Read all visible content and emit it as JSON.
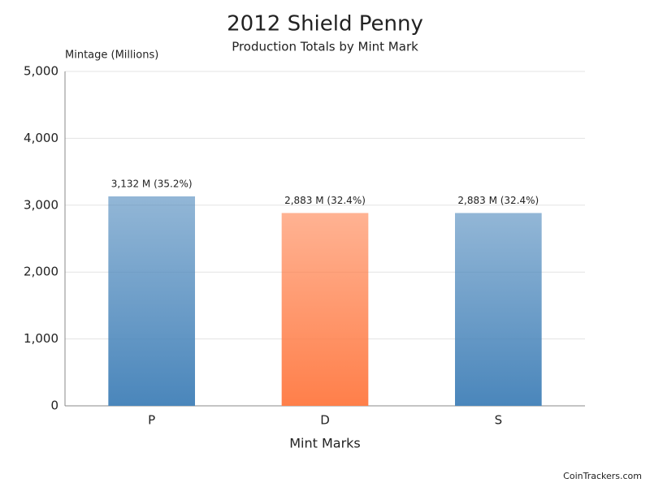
{
  "chart_data": {
    "type": "bar",
    "title": "2012 Shield Penny",
    "subtitle": "Production Totals by Mint Mark",
    "y_label": "Mintage (Millions)",
    "x_label": "Mint Marks",
    "credit": "CoinTrackers.com",
    "categories": [
      "P",
      "D",
      "S"
    ],
    "values": [
      3132,
      2883,
      2883
    ],
    "value_labels": [
      "3,132 M (35.2%)",
      "2,883 M (32.4%)",
      "2,883 M (32.4%)"
    ],
    "colors": [
      "#4a86bb",
      "#ff7f4a",
      "#4a86bb"
    ],
    "ylim": [
      0,
      5000
    ],
    "yticks": [
      0,
      {
        "value": 1000,
        "label": "1,000"
      },
      {
        "value": 2000,
        "label": "2,000"
      },
      {
        "value": 3000,
        "label": "3,000"
      },
      {
        "value": 4000,
        "label": "4,000"
      },
      {
        "value": 5000,
        "label": "5,000"
      }
    ],
    "grid": true
  }
}
